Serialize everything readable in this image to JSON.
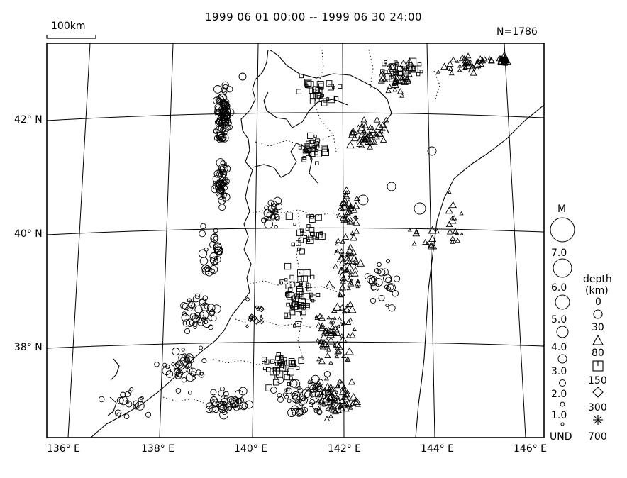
{
  "title": "1999 06 01 00:00 -- 1999 06 30 24:00",
  "event_count": "N=1786",
  "scale_bar_label": "100km",
  "lat_labels": [
    "42° N",
    "40° N",
    "38° N"
  ],
  "lon_labels": [
    "136° E",
    "138° E",
    "140° E",
    "142° E",
    "144° E",
    "146° E"
  ],
  "magnitude_legend": {
    "title": "M",
    "entries": [
      "7.0",
      "6.0",
      "5.0",
      "4.0",
      "3.0",
      "2.0",
      "1.0",
      "UND"
    ]
  },
  "depth_legend": {
    "title_line1": "depth",
    "title_line2": "(km)",
    "entries": [
      {
        "label": "0",
        "symbol": "circle"
      },
      {
        "label": "30",
        "symbol": "triangle"
      },
      {
        "label": "80",
        "symbol": "square"
      },
      {
        "label": "150",
        "symbol": "diamond"
      },
      {
        "label": "300",
        "symbol": "asterisk"
      },
      {
        "label": "700",
        "symbol": ""
      }
    ]
  },
  "colors": {
    "ink": "#000000",
    "background": "#ffffff"
  }
}
